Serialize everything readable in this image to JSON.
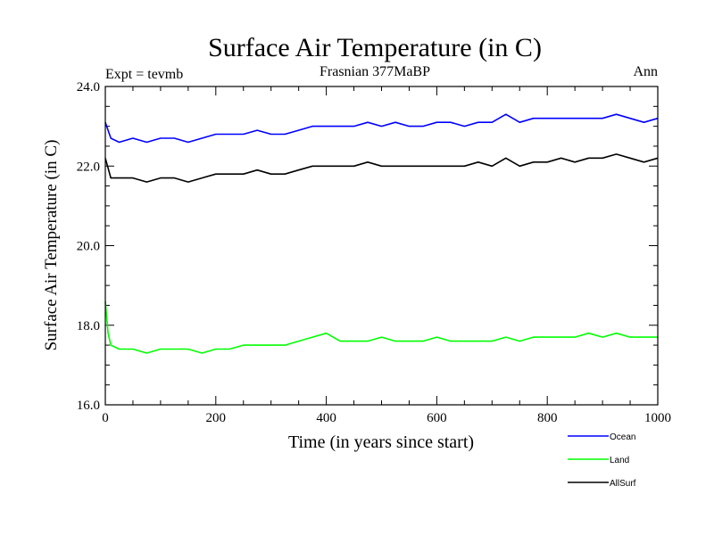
{
  "chart_data": {
    "type": "line",
    "title": "Surface Air Temperature (in C)",
    "subtitle_left": "Expt = tevmb",
    "subtitle_center": "Frasnian 377MaBP",
    "subtitle_right": "Ann",
    "xlabel": "Time (in years since start)",
    "ylabel": "Surface Air Temperature (in C)",
    "xlim": [
      0,
      1000
    ],
    "ylim": [
      16.0,
      24.0
    ],
    "xticks": [
      0,
      200,
      400,
      600,
      800,
      1000
    ],
    "xtick_labels": [
      "0",
      "200",
      "400",
      "600",
      "800",
      "1000"
    ],
    "yticks": [
      16.0,
      18.0,
      20.0,
      22.0,
      24.0
    ],
    "ytick_labels": [
      "16.0",
      "18.0",
      "20.0",
      "22.0",
      "24.0"
    ],
    "grid": false,
    "legend_position": "bottom-right",
    "series": [
      {
        "name": "Ocean",
        "color": "#0000ff",
        "x": [
          0,
          10,
          25,
          50,
          75,
          100,
          125,
          150,
          175,
          200,
          225,
          250,
          275,
          300,
          325,
          350,
          375,
          400,
          425,
          450,
          475,
          500,
          525,
          550,
          575,
          600,
          625,
          650,
          675,
          700,
          725,
          750,
          775,
          800,
          825,
          850,
          875,
          900,
          925,
          950,
          975,
          1000
        ],
        "values": [
          23.1,
          22.7,
          22.6,
          22.7,
          22.6,
          22.7,
          22.7,
          22.6,
          22.7,
          22.8,
          22.8,
          22.8,
          22.9,
          22.8,
          22.8,
          22.9,
          23.0,
          23.0,
          23.0,
          23.0,
          23.1,
          23.0,
          23.1,
          23.0,
          23.0,
          23.1,
          23.1,
          23.0,
          23.1,
          23.1,
          23.3,
          23.1,
          23.2,
          23.2,
          23.2,
          23.2,
          23.2,
          23.2,
          23.3,
          23.2,
          23.1,
          23.2
        ]
      },
      {
        "name": "Land",
        "color": "#00ff00",
        "x": [
          0,
          5,
          10,
          25,
          50,
          75,
          100,
          125,
          150,
          175,
          200,
          225,
          250,
          275,
          300,
          325,
          350,
          375,
          400,
          425,
          450,
          475,
          500,
          525,
          550,
          575,
          600,
          625,
          650,
          675,
          700,
          725,
          750,
          775,
          800,
          825,
          850,
          875,
          900,
          925,
          950,
          975,
          1000
        ],
        "values": [
          18.6,
          17.8,
          17.5,
          17.4,
          17.4,
          17.3,
          17.4,
          17.4,
          17.4,
          17.3,
          17.4,
          17.4,
          17.5,
          17.5,
          17.5,
          17.5,
          17.6,
          17.7,
          17.8,
          17.6,
          17.6,
          17.6,
          17.7,
          17.6,
          17.6,
          17.6,
          17.7,
          17.6,
          17.6,
          17.6,
          17.6,
          17.7,
          17.6,
          17.7,
          17.7,
          17.7,
          17.7,
          17.8,
          17.7,
          17.8,
          17.7,
          17.7,
          17.7
        ]
      },
      {
        "name": "AllSurf",
        "color": "#000000",
        "x": [
          0,
          10,
          25,
          50,
          75,
          100,
          125,
          150,
          175,
          200,
          225,
          250,
          275,
          300,
          325,
          350,
          375,
          400,
          425,
          450,
          475,
          500,
          525,
          550,
          575,
          600,
          625,
          650,
          675,
          700,
          725,
          750,
          775,
          800,
          825,
          850,
          875,
          900,
          925,
          950,
          975,
          1000
        ],
        "values": [
          22.2,
          21.7,
          21.7,
          21.7,
          21.6,
          21.7,
          21.7,
          21.6,
          21.7,
          21.8,
          21.8,
          21.8,
          21.9,
          21.8,
          21.8,
          21.9,
          22.0,
          22.0,
          22.0,
          22.0,
          22.1,
          22.0,
          22.0,
          22.0,
          22.0,
          22.0,
          22.0,
          22.0,
          22.1,
          22.0,
          22.2,
          22.0,
          22.1,
          22.1,
          22.2,
          22.1,
          22.2,
          22.2,
          22.3,
          22.2,
          22.1,
          22.2
        ]
      }
    ]
  }
}
